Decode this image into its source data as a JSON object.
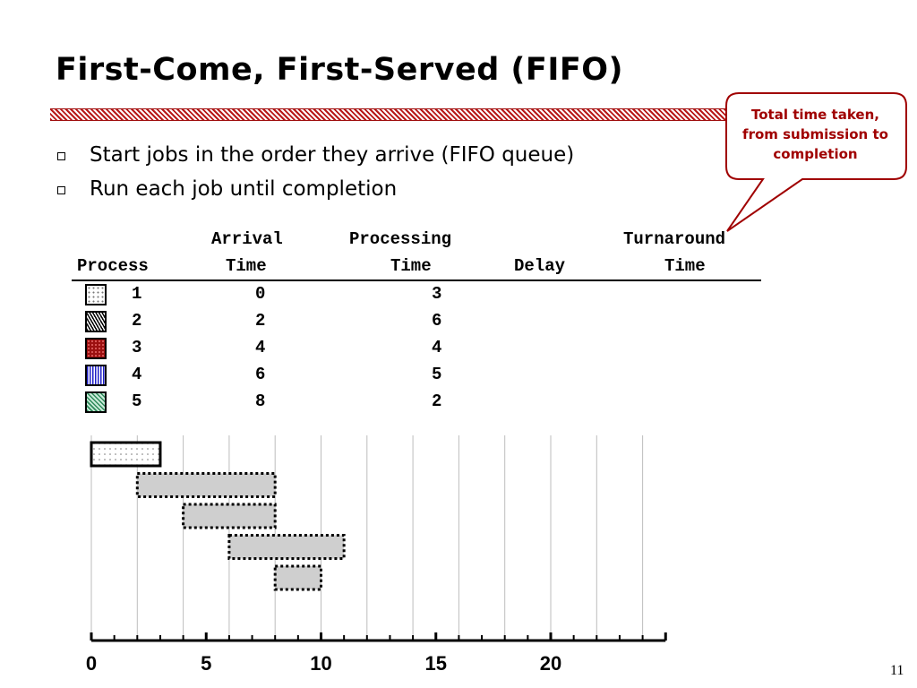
{
  "slide": {
    "title": "First-Come, First-Served (FIFO)",
    "bullets": [
      "Start jobs in the order they arrive (FIFO queue)",
      "Run each job until completion"
    ],
    "callout": [
      "Total time taken,",
      "from submission to",
      "completion"
    ],
    "page_number": "11"
  },
  "table": {
    "headers": {
      "process": "Process",
      "arrival_1": "Arrival",
      "arrival_2": "Time",
      "processing_1": "Processing",
      "processing_2": "Time",
      "delay": "Delay",
      "turnaround_1": "Turnaround",
      "turnaround_2": "Time"
    },
    "rows": [
      {
        "process": "1",
        "arrival": "0",
        "processing": "3",
        "pattern": "dotted-white"
      },
      {
        "process": "2",
        "arrival": "2",
        "processing": "6",
        "pattern": "diagonal-black"
      },
      {
        "process": "3",
        "arrival": "4",
        "processing": "4",
        "pattern": "dotted-red"
      },
      {
        "process": "4",
        "arrival": "6",
        "processing": "5",
        "pattern": "vertical-blue"
      },
      {
        "process": "5",
        "arrival": "8",
        "processing": "2",
        "pattern": "diagonal-green"
      }
    ]
  },
  "chart_data": {
    "type": "gantt",
    "x_ticks": [
      "0",
      "5",
      "10",
      "15",
      "20"
    ],
    "xlim": [
      0,
      25
    ],
    "bars": [
      {
        "process": "1",
        "start": 0,
        "end": 3,
        "style": "solid-dotted-white"
      },
      {
        "process": "2",
        "start": 2,
        "end": 8,
        "style": "dashed-gray"
      },
      {
        "process": "3",
        "start": 4,
        "end": 8,
        "style": "dashed-gray"
      },
      {
        "process": "4",
        "start": 6,
        "end": 11,
        "style": "dashed-gray"
      },
      {
        "process": "5",
        "start": 8,
        "end": 10,
        "style": "dashed-gray"
      }
    ]
  },
  "colors": {
    "accent": "#a00000",
    "bar_gray": "#cfcfcf",
    "swatch_red": "#9c1010",
    "swatch_blue": "#2020c8",
    "swatch_green": "#3a9a6a"
  }
}
